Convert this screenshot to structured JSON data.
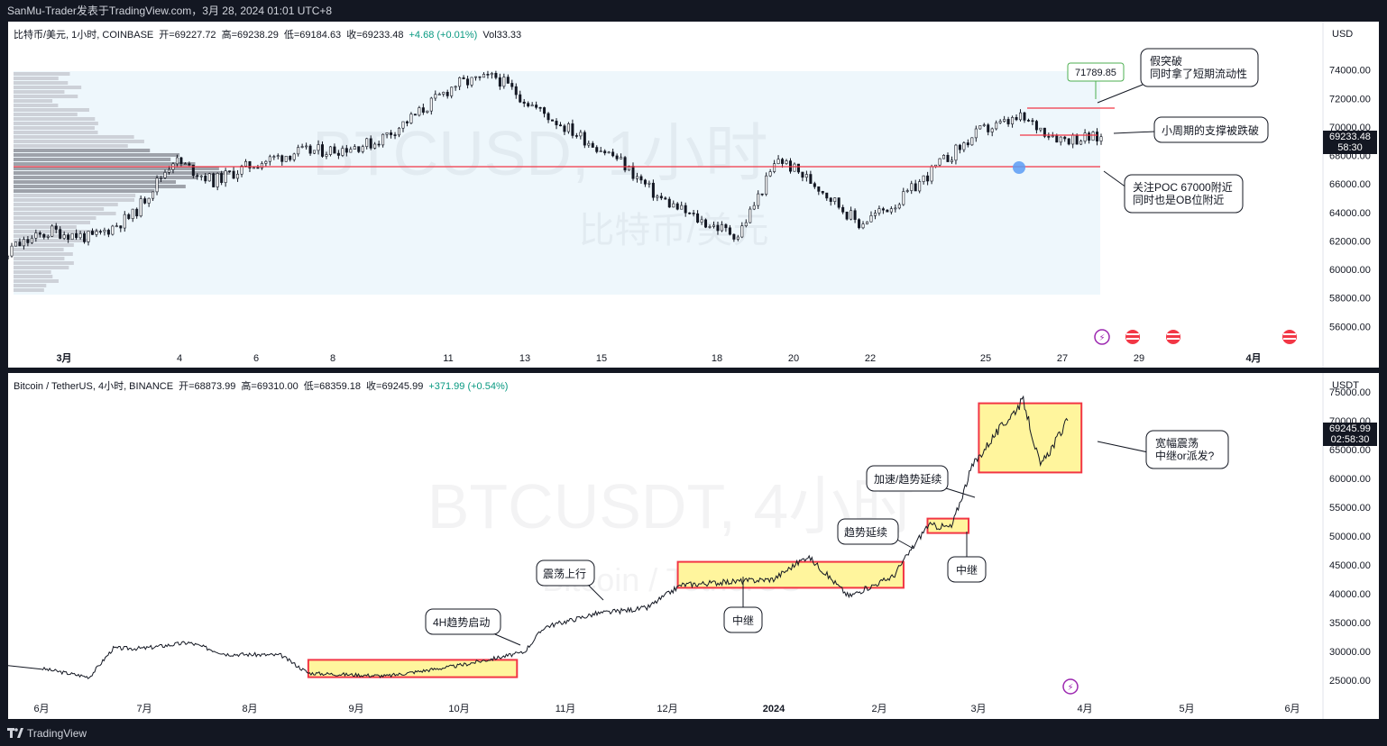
{
  "header": {
    "title": "SanMu-Trader发表于TradingView.com，3月 28, 2024 01:01 UTC+8"
  },
  "footer": {
    "brand": "TradingView"
  },
  "colors": {
    "background": "#131722",
    "poc_line": "#f23645",
    "box_fill": "#fff59d",
    "box_border": "#f23645",
    "range_bg": "#eef7fc"
  },
  "panel1": {
    "symbol": "比特币/美元, 1小时, COINBASE",
    "open_label": "开",
    "open": "=69227.72",
    "high_label": "高",
    "high": "=69238.29",
    "low_label": "低",
    "low": "=69184.63",
    "close_label": "收",
    "close": "=69233.48",
    "change": "+4.68 (+0.01%)",
    "vol": "Vol33.33",
    "currency": "USD",
    "watermark_1": "BTCUSD, 1小时",
    "watermark_2": "比特币/美元",
    "price_tag": "69233.48",
    "countdown": "58:30",
    "annotations": [
      {
        "line1": "假突破",
        "line2": "同时拿了短期流动性"
      },
      {
        "line1": "小周期的支撑被跌破",
        "line2": ""
      },
      {
        "line1": "关注POC 67000附近",
        "line2": "同时也是OB位附近"
      }
    ],
    "marker_price": "71789.85"
  },
  "panel2": {
    "symbol": "Bitcoin / TetherUS, 4小时, BINANCE",
    "open_label": "开",
    "open": "=68873.99",
    "high_label": "高",
    "high": "=69310.00",
    "low_label": "低",
    "low": "=68359.18",
    "close_label": "收",
    "close": "=69245.99",
    "change": "+371.99 (+0.54%)",
    "currency": "USDT",
    "watermark_1": "BTCUSDT, 4小时",
    "watermark_2": "Bitcoin / TetherUS",
    "price_tag": "69245.99",
    "countdown": "02:58:30",
    "annotations": [
      {
        "line1": "宽幅震荡",
        "line2": "中继or派发?"
      },
      {
        "line1": "加速/趋势延续",
        "line2": ""
      },
      {
        "line1": "趋势延续",
        "line2": ""
      },
      {
        "line1": "中继",
        "line2": ""
      },
      {
        "line1": "震荡上行",
        "line2": ""
      },
      {
        "line1": "中继",
        "line2": ""
      },
      {
        "line1": "4H趋势启动",
        "line2": ""
      }
    ]
  },
  "chart_data": [
    {
      "type": "candlestick",
      "title": "比特币/美元, 1小时, COINBASE",
      "ylim": [
        54500,
        75500
      ],
      "y_ticks": [
        56000,
        58000,
        60000,
        62000,
        64000,
        66000,
        68000,
        70000,
        72000,
        74000
      ],
      "y_tick_labels": [
        "56000.00",
        "58000.00",
        "60000.00",
        "62000.00",
        "64000.00",
        "66000.00",
        "68000.00",
        "70000.00",
        "72000.00",
        "74000.00"
      ],
      "x_ticks": [
        "3月",
        "4",
        "6",
        "8",
        "11",
        "13",
        "15",
        "18",
        "20",
        "22",
        "25",
        "27",
        "29",
        "4月"
      ],
      "x": [
        1,
        2,
        3,
        4,
        5,
        6,
        7,
        8,
        9,
        10,
        11,
        12,
        13,
        14,
        15,
        16,
        17,
        18,
        19,
        20,
        21,
        22,
        23,
        24,
        25,
        26,
        27,
        28
      ],
      "close": [
        61500,
        62700,
        62200,
        63800,
        67700,
        66200,
        67400,
        68200,
        68400,
        68900,
        70800,
        73000,
        73500,
        71300,
        69500,
        67800,
        65100,
        63500,
        62400,
        67800,
        65800,
        63200,
        64800,
        67400,
        69700,
        70600,
        69200,
        69233
      ],
      "poc": 67000,
      "false_breakout_level": 71300,
      "broken_support": 69500,
      "marker_value": 71789.85
    },
    {
      "type": "line",
      "title": "Bitcoin / TetherUS, 4小时, BINANCE",
      "ylim": [
        22000,
        77000
      ],
      "y_ticks": [
        25000,
        30000,
        35000,
        40000,
        45000,
        50000,
        55000,
        60000,
        65000,
        70000,
        75000
      ],
      "y_tick_labels": [
        "25000.00",
        "30000.00",
        "35000.00",
        "40000.00",
        "45000.00",
        "50000.00",
        "55000.00",
        "60000.00",
        "65000.00",
        "70000.00",
        "75000.00"
      ],
      "x_ticks": [
        "6月",
        "7月",
        "8月",
        "9月",
        "10月",
        "11月",
        "12月",
        "2024",
        "2月",
        "3月",
        "4月",
        "5月",
        "6月"
      ],
      "x": [
        "2023-06-01",
        "2023-06-15",
        "2023-06-22",
        "2023-07-01",
        "2023-07-14",
        "2023-07-25",
        "2023-08-10",
        "2023-08-18",
        "2023-09-10",
        "2023-10-01",
        "2023-10-20",
        "2023-10-26",
        "2023-11-10",
        "2023-11-25",
        "2023-12-05",
        "2024-01-01",
        "2024-01-11",
        "2024-01-23",
        "2024-02-05",
        "2024-02-15",
        "2024-02-22",
        "2024-02-28",
        "2024-03-05",
        "2024-03-14",
        "2024-03-19",
        "2024-03-27"
      ],
      "values": [
        27000,
        25500,
        30500,
        30500,
        31500,
        29500,
        29300,
        26200,
        25700,
        27500,
        29800,
        34200,
        36500,
        37500,
        41500,
        42500,
        46500,
        39500,
        43000,
        51800,
        51500,
        62000,
        67000,
        73500,
        62000,
        70000
      ],
      "consolidation_ranges": [
        {
          "from": "2023-08-18",
          "to": "2023-10-18",
          "low": 25500,
          "high": 28500
        },
        {
          "from": "2023-12-04",
          "to": "2024-02-08",
          "low": 41000,
          "high": 45500
        },
        {
          "from": "2024-02-15",
          "to": "2024-02-27",
          "low": 50500,
          "high": 53000
        },
        {
          "from": "2024-03-01",
          "to": "2024-03-31",
          "low": 61000,
          "high": 73000
        }
      ]
    }
  ]
}
